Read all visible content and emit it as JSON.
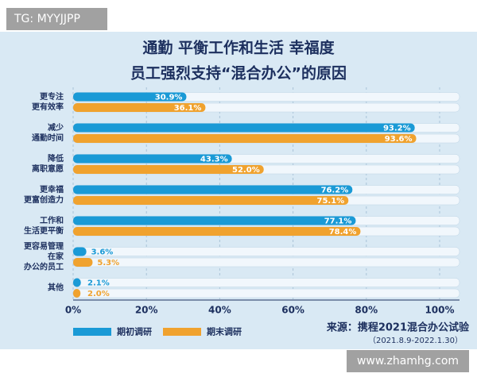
{
  "chart_data": {
    "type": "barh",
    "watermark_top": "TG: MYYJJPP",
    "watermark_bottom": "www.zhamhg.com",
    "title": [
      "通勤 平衡工作和生活 幸福度",
      "员工强烈支持“混合办公”的原因"
    ],
    "categories": [
      [
        "更专注",
        "更有效率"
      ],
      [
        "减少",
        "通勤时间"
      ],
      [
        "降低",
        "离职意愿"
      ],
      [
        "更幸福",
        "更富创造力"
      ],
      [
        "工作和",
        "生活更平衡"
      ],
      [
        "更容易管理",
        "在家",
        "办公的员工"
      ],
      [
        "其他"
      ]
    ],
    "series": [
      {
        "name": "期初调研",
        "color": "#1a9ad6",
        "values": [
          30.9,
          93.2,
          43.3,
          76.2,
          77.1,
          3.6,
          2.1
        ],
        "value_labels": [
          "30.9%",
          "93.2%",
          "43.3%",
          "76.2%",
          "77.1%",
          "3.6%",
          "2.1%"
        ]
      },
      {
        "name": "期末调研",
        "color": "#f0a22e",
        "values": [
          36.1,
          93.6,
          52.0,
          75.1,
          78.4,
          5.3,
          2.0
        ],
        "value_labels": [
          "36.1%",
          "93.6%",
          "52.0%",
          "75.1%",
          "78.4%",
          "5.3%",
          "2.0%"
        ]
      }
    ],
    "xlim": [
      0,
      100
    ],
    "xticks": [
      {
        "value": 0,
        "label": "0%"
      },
      {
        "value": 20,
        "label": "20%"
      },
      {
        "value": 40,
        "label": "40%"
      },
      {
        "value": 60,
        "label": "60%"
      },
      {
        "value": 80,
        "label": "80%"
      },
      {
        "value": 100,
        "label": "100%"
      }
    ],
    "grid": true,
    "source": [
      "来源：携程2021混合办公试验",
      "（2021.8.9-2022.1.30）"
    ]
  }
}
